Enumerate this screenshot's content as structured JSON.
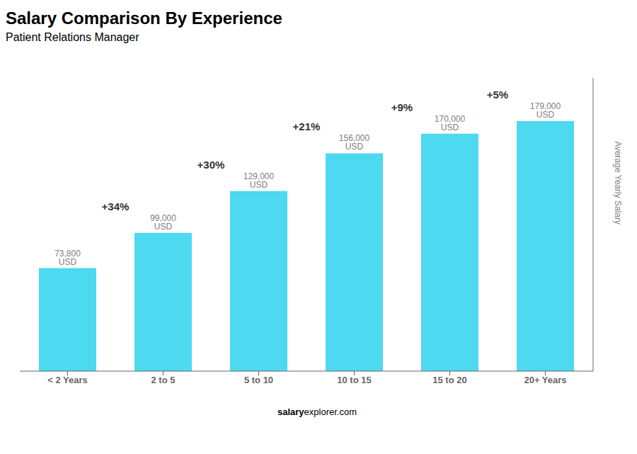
{
  "chart_data": {
    "type": "bar",
    "title": "Salary Comparison By Experience",
    "subtitle": "Patient Relations Manager",
    "categories": [
      "< 2 Years",
      "2 to 5",
      "5 to 10",
      "10 to 15",
      "15 to 20",
      "20+ Years"
    ],
    "values": [
      73800,
      99000,
      129000,
      156000,
      170000,
      179000
    ],
    "value_labels": [
      "73,800 USD",
      "99,000 USD",
      "129,000 USD",
      "156,000 USD",
      "170,000 USD",
      "179,000 USD"
    ],
    "data_labels": true,
    "annotations": [
      "+34%",
      "+30%",
      "+21%",
      "+9%",
      "+5%"
    ],
    "ylabel": "Average Yearly Salary",
    "footer_left": "salary",
    "footer_right": "explorer.com",
    "color": "#4DD9F0",
    "ylim": [
      0,
      210000
    ],
    "tick_labels": "x",
    "grid": false
  }
}
